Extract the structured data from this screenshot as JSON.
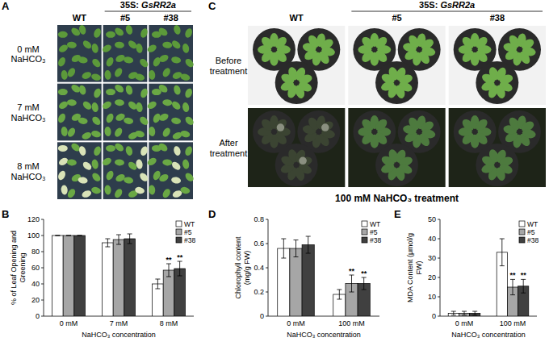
{
  "panels": [
    {
      "label": "A",
      "group": "35S: GsRR2a",
      "columns": [
        "WT",
        "#5",
        "#38"
      ],
      "rows": [
        "0 mM NaHCO₃",
        "7 mM NaHCO₃",
        "8 mM NaHCO₃"
      ]
    },
    {
      "label": "C",
      "group": "35S: GsRR2a",
      "columns": [
        "WT",
        "#5",
        "#38"
      ],
      "rows": [
        "Before treatment",
        "After treatment"
      ],
      "caption": "100 mM NaHCO₃ treatment"
    }
  ],
  "chart_data": [
    {
      "type": "bar",
      "panel": "B",
      "categories": [
        "0 mM",
        "7 mM",
        "8 mM"
      ],
      "x_label": "NaHCO₃ concentration",
      "y_label": "% of Leaf Opening and Greening",
      "ylim": [
        0,
        120
      ],
      "yticks": [
        0,
        20,
        40,
        60,
        80,
        100,
        120
      ],
      "legend": "upper right",
      "series": [
        {
          "name": "WT",
          "color": "#ffffff",
          "values": [
            100,
            91,
            40
          ],
          "errors": [
            0,
            5,
            6
          ]
        },
        {
          "name": "#5",
          "color": "#a6a6a6",
          "values": [
            100,
            95,
            57
          ],
          "errors": [
            0,
            6,
            8
          ]
        },
        {
          "name": "#38",
          "color": "#404040",
          "values": [
            100,
            96,
            59
          ],
          "errors": [
            0,
            6,
            9
          ]
        }
      ],
      "annotations": [
        {
          "series": 1,
          "index": 2,
          "text": "**"
        },
        {
          "series": 2,
          "index": 2,
          "text": "**"
        }
      ]
    },
    {
      "type": "bar",
      "panel": "D",
      "categories": [
        "0 mM",
        "100 mM"
      ],
      "x_label": "NaHCO₃ concentration",
      "y_label": "Chlorophyll content (mg/g FW)",
      "ylim": [
        0,
        0.8
      ],
      "yticks": [
        0,
        0.2,
        0.4,
        0.6,
        0.8
      ],
      "legend": "upper right",
      "series": [
        {
          "name": "WT",
          "color": "#ffffff",
          "values": [
            0.56,
            0.18
          ],
          "errors": [
            0.08,
            0.04
          ]
        },
        {
          "name": "#5",
          "color": "#a6a6a6",
          "values": [
            0.56,
            0.27
          ],
          "errors": [
            0.07,
            0.07
          ]
        },
        {
          "name": "#38",
          "color": "#404040",
          "values": [
            0.59,
            0.27
          ],
          "errors": [
            0.07,
            0.05
          ]
        }
      ],
      "annotations": [
        {
          "series": 1,
          "index": 1,
          "text": "**"
        },
        {
          "series": 2,
          "index": 1,
          "text": "**"
        }
      ]
    },
    {
      "type": "bar",
      "panel": "E",
      "categories": [
        "0 mM",
        "100 mM"
      ],
      "x_label": "NaHCO₃ concentration",
      "y_label": "MDA Content (μmol/g FW)",
      "ylim": [
        0,
        50
      ],
      "yticks": [
        0,
        10,
        20,
        30,
        40,
        50
      ],
      "legend": "upper right",
      "series": [
        {
          "name": "WT",
          "color": "#ffffff",
          "values": [
            1.5,
            33
          ],
          "errors": [
            1,
            7
          ]
        },
        {
          "name": "#5",
          "color": "#a6a6a6",
          "values": [
            1.5,
            15
          ],
          "errors": [
            1,
            4
          ]
        },
        {
          "name": "#38",
          "color": "#404040",
          "values": [
            1.5,
            15.5
          ],
          "errors": [
            1,
            3.5
          ]
        }
      ],
      "annotations": [
        {
          "series": 1,
          "index": 1,
          "text": "**"
        },
        {
          "series": 2,
          "index": 1,
          "text": "**"
        }
      ]
    }
  ]
}
